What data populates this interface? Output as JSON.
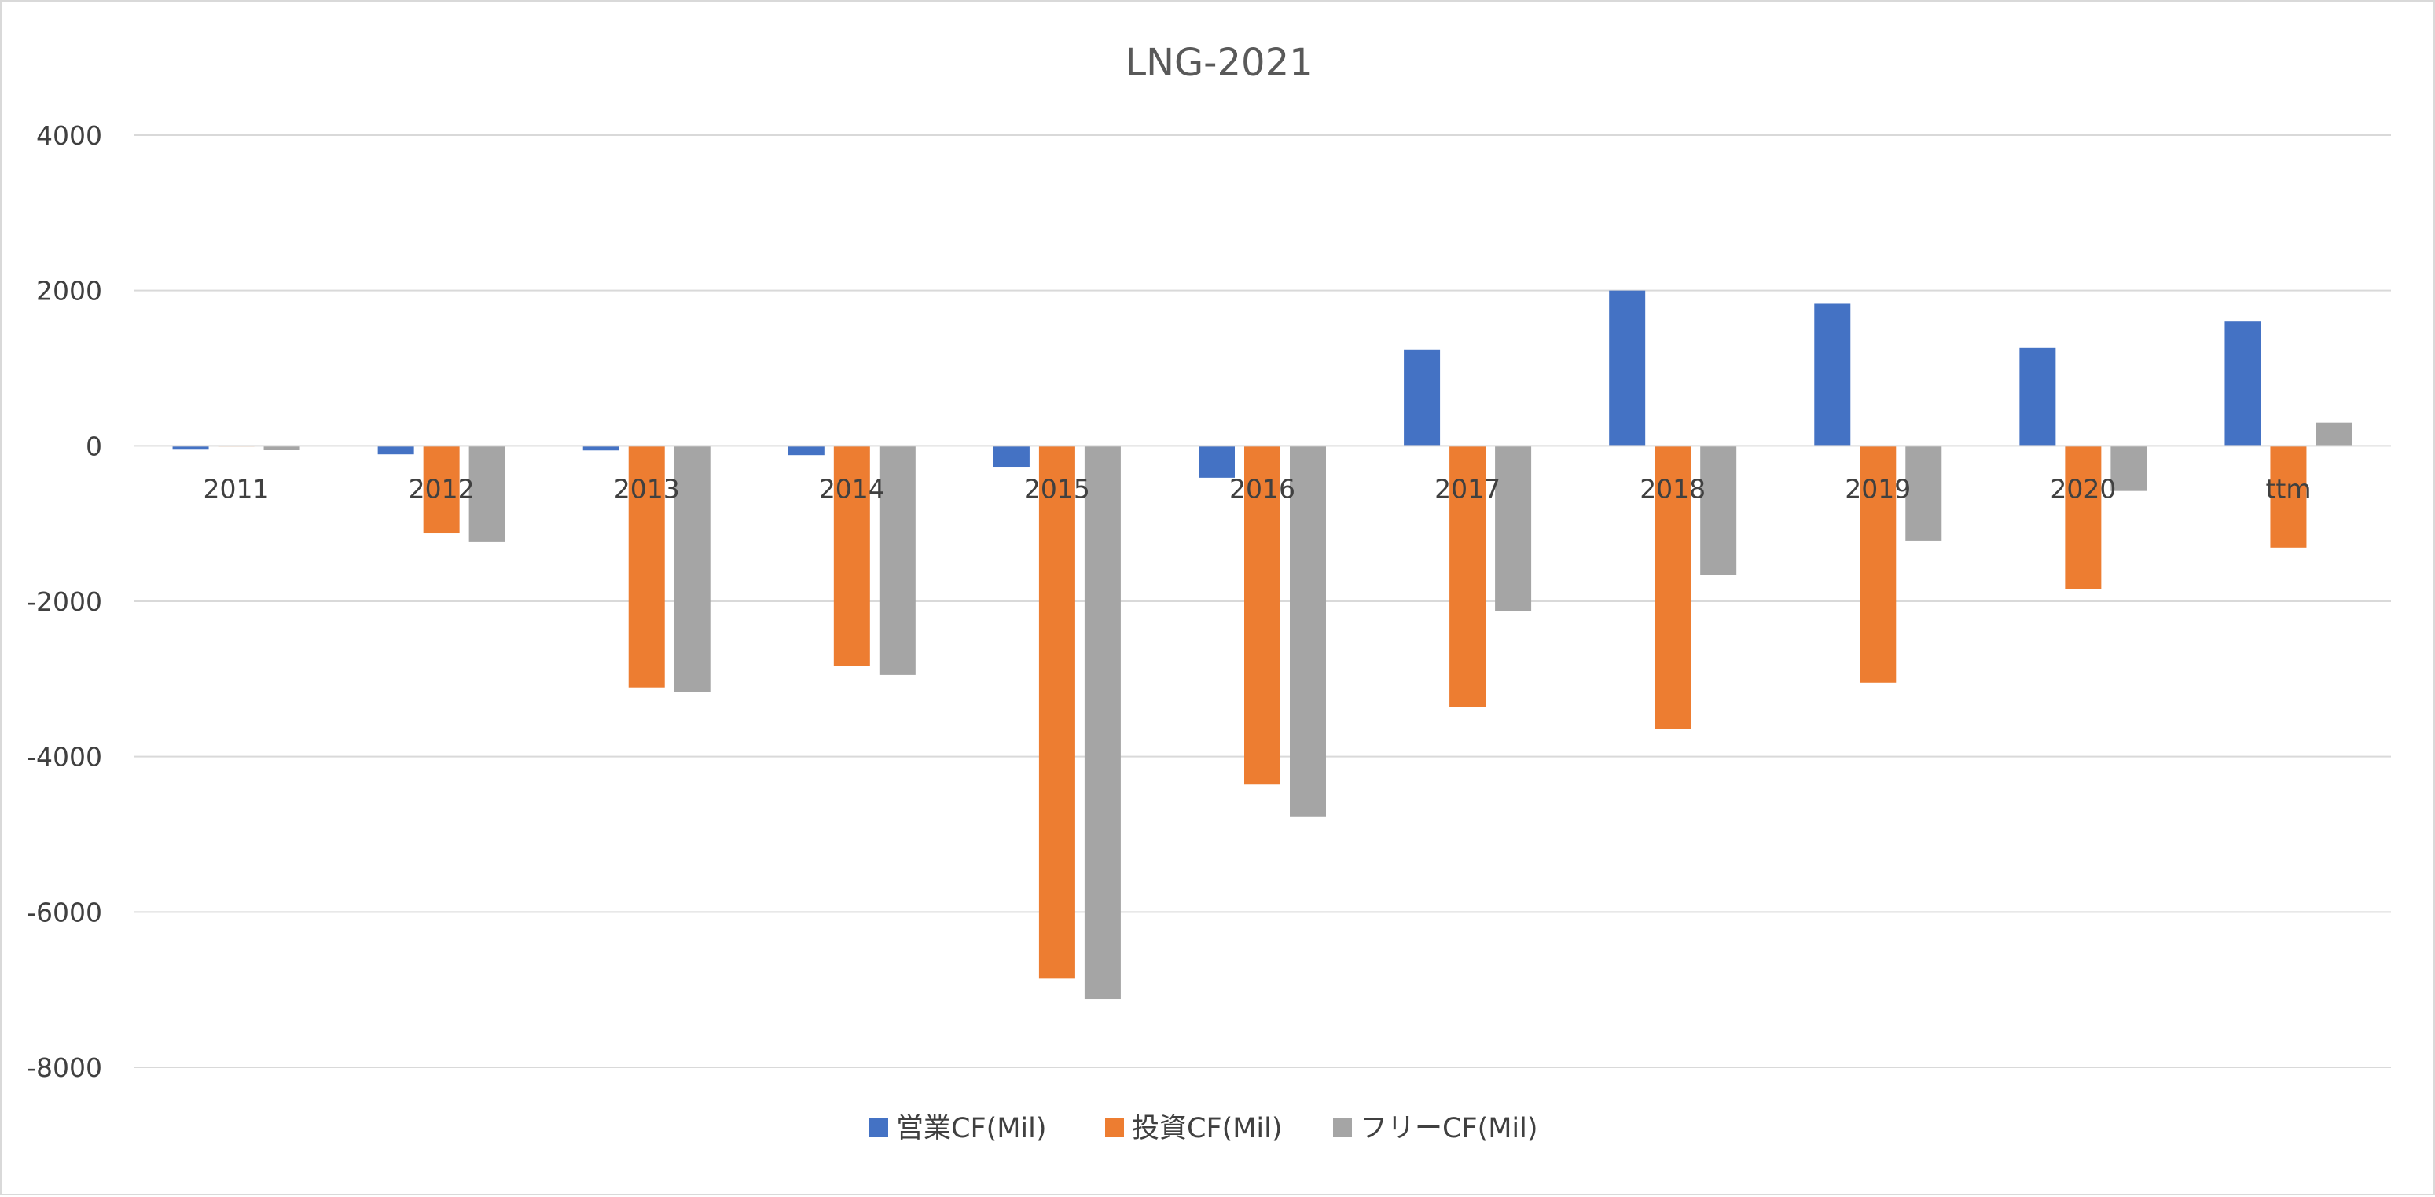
{
  "chart_data": {
    "type": "bar",
    "title": "LNG-2021",
    "xlabel": "",
    "ylabel": "",
    "ylim": [
      -8000,
      4000
    ],
    "yticks": [
      4000,
      2000,
      0,
      -2000,
      -4000,
      -6000,
      -8000
    ],
    "grid": true,
    "legend_position": "bottom",
    "categories": [
      "2011",
      "2012",
      "2013",
      "2014",
      "2015",
      "2016",
      "2017",
      "2018",
      "2019",
      "2020",
      "ttm"
    ],
    "series": [
      {
        "name": "営業CF(Mil)",
        "color": "#4472c4",
        "values": [
          -40,
          -110,
          -60,
          -120,
          -270,
          -410,
          1240,
          2000,
          1830,
          1260,
          1600
        ]
      },
      {
        "name": "投資CF(Mil)",
        "color": "#ed7d31",
        "values": [
          -10,
          -1120,
          -3110,
          -2830,
          -6850,
          -4360,
          -3360,
          -3640,
          -3050,
          -1840,
          -1310
        ]
      },
      {
        "name": "フリーCF(Mil)",
        "color": "#a5a5a5",
        "values": [
          -50,
          -1230,
          -3170,
          -2950,
          -7120,
          -4770,
          -2130,
          -1660,
          -1220,
          -580,
          300
        ]
      }
    ]
  }
}
